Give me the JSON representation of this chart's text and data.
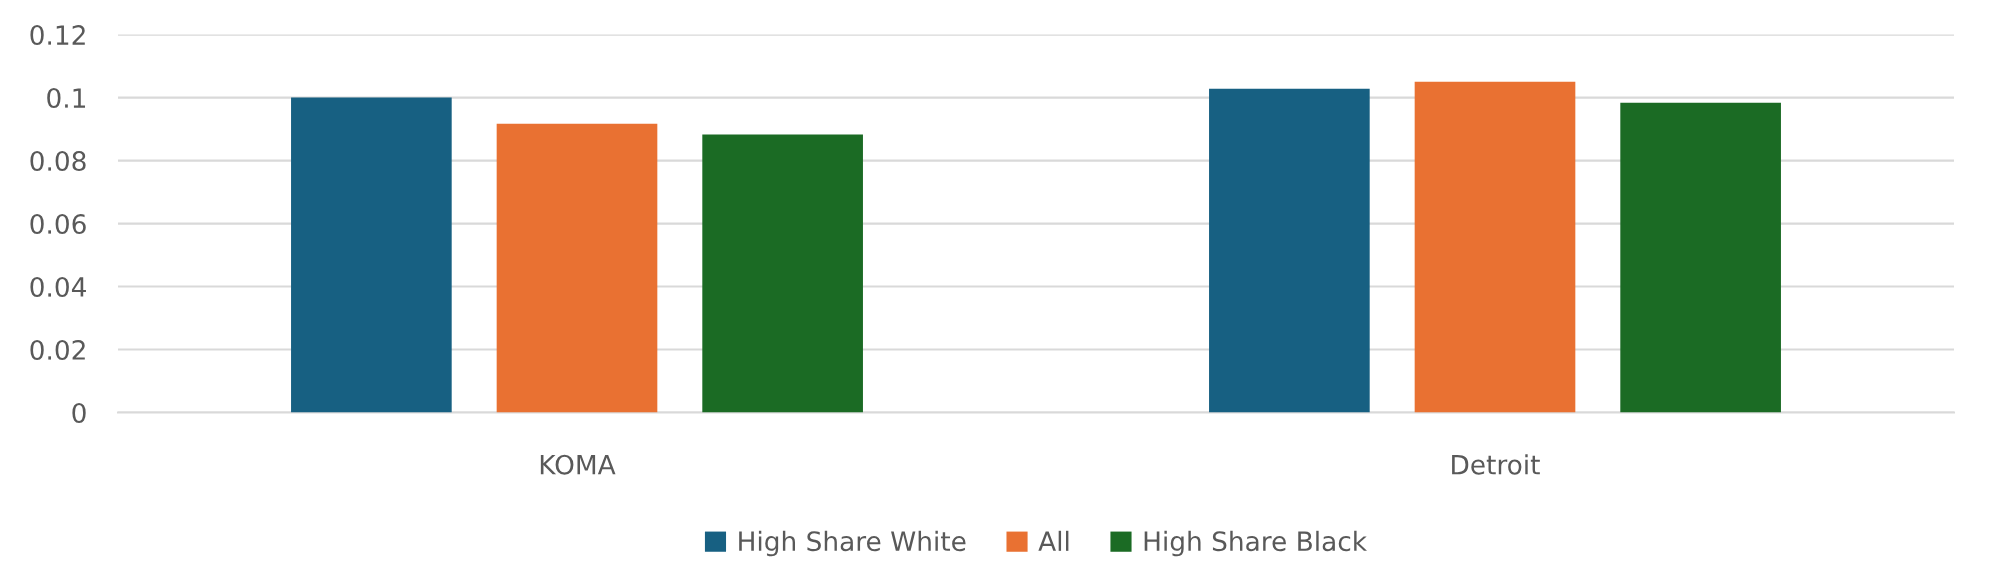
{
  "chart_data": {
    "type": "bar",
    "categories": [
      "KOMA",
      "Detroit"
    ],
    "series": [
      {
        "name": "High Share White",
        "color": "#176082",
        "values": [
          0.1,
          0.1028
        ]
      },
      {
        "name": "All",
        "color": "#e97132",
        "values": [
          0.0917,
          0.105
        ]
      },
      {
        "name": "High Share Black",
        "color": "#1b6b24",
        "values": [
          0.0883,
          0.0984
        ]
      }
    ],
    "ylim": [
      0,
      0.12
    ],
    "yticks": [
      0,
      0.02,
      0.04,
      0.06,
      0.08,
      0.1,
      0.12
    ],
    "grid": "y",
    "legend": "bottom"
  }
}
